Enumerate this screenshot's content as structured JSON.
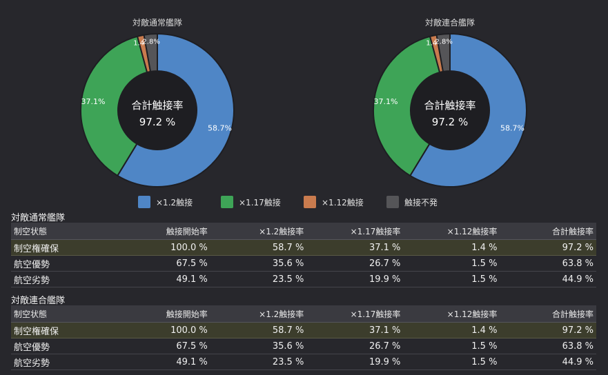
{
  "chart_data": [
    {
      "type": "pie",
      "title": "対敵通常艦隊",
      "center_label": "合計触接率",
      "center_value": "97.2 %",
      "slices": [
        {
          "name": "×1.2触接",
          "value": 58.7,
          "label": "58.7%",
          "color": "#4f86c6"
        },
        {
          "name": "×1.17触接",
          "value": 37.1,
          "label": "37.1%",
          "color": "#3ea457"
        },
        {
          "name": "×1.12触接",
          "value": 1.4,
          "label": "1.4%",
          "color": "#c97b4e"
        },
        {
          "name": "触接不発",
          "value": 2.8,
          "label": "2.8%",
          "color": "#555558"
        }
      ]
    },
    {
      "type": "pie",
      "title": "対敵連合艦隊",
      "center_label": "合計触接率",
      "center_value": "97.2 %",
      "slices": [
        {
          "name": "×1.2触接",
          "value": 58.7,
          "label": "58.7%",
          "color": "#4f86c6"
        },
        {
          "name": "×1.17触接",
          "value": 37.1,
          "label": "37.1%",
          "color": "#3ea457"
        },
        {
          "name": "×1.12触接",
          "value": 1.4,
          "label": "1.4%",
          "color": "#c97b4e"
        },
        {
          "name": "触接不発",
          "value": 2.8,
          "label": "2.8%",
          "color": "#555558"
        }
      ]
    }
  ],
  "legend": [
    {
      "label": "×1.2触接",
      "color": "#4f86c6"
    },
    {
      "label": "×1.17触接",
      "color": "#3ea457"
    },
    {
      "label": "×1.12触接",
      "color": "#c97b4e"
    },
    {
      "label": "触接不発",
      "color": "#555558"
    }
  ],
  "tables": [
    {
      "title": "対敵通常艦隊",
      "headers": [
        "制空状態",
        "触接開始率",
        "×1.2触接率",
        "×1.17触接率",
        "×1.12触接率",
        "合計触接率"
      ],
      "rows": [
        [
          "制空権確保",
          "100.0 %",
          "58.7 %",
          "37.1 %",
          "1.4 %",
          "97.2 %"
        ],
        [
          "航空優勢",
          "67.5 %",
          "35.6 %",
          "26.7 %",
          "1.5 %",
          "63.8 %"
        ],
        [
          "航空劣勢",
          "49.1 %",
          "23.5 %",
          "19.9 %",
          "1.5 %",
          "44.9 %"
        ]
      ]
    },
    {
      "title": "対敵連合艦隊",
      "headers": [
        "制空状態",
        "触接開始率",
        "×1.2触接率",
        "×1.17触接率",
        "×1.12触接率",
        "合計触接率"
      ],
      "rows": [
        [
          "制空権確保",
          "100.0 %",
          "58.7 %",
          "37.1 %",
          "1.4 %",
          "97.2 %"
        ],
        [
          "航空優勢",
          "67.5 %",
          "35.6 %",
          "26.7 %",
          "1.5 %",
          "63.8 %"
        ],
        [
          "航空劣勢",
          "49.1 %",
          "23.5 %",
          "19.9 %",
          "1.5 %",
          "44.9 %"
        ]
      ]
    }
  ]
}
